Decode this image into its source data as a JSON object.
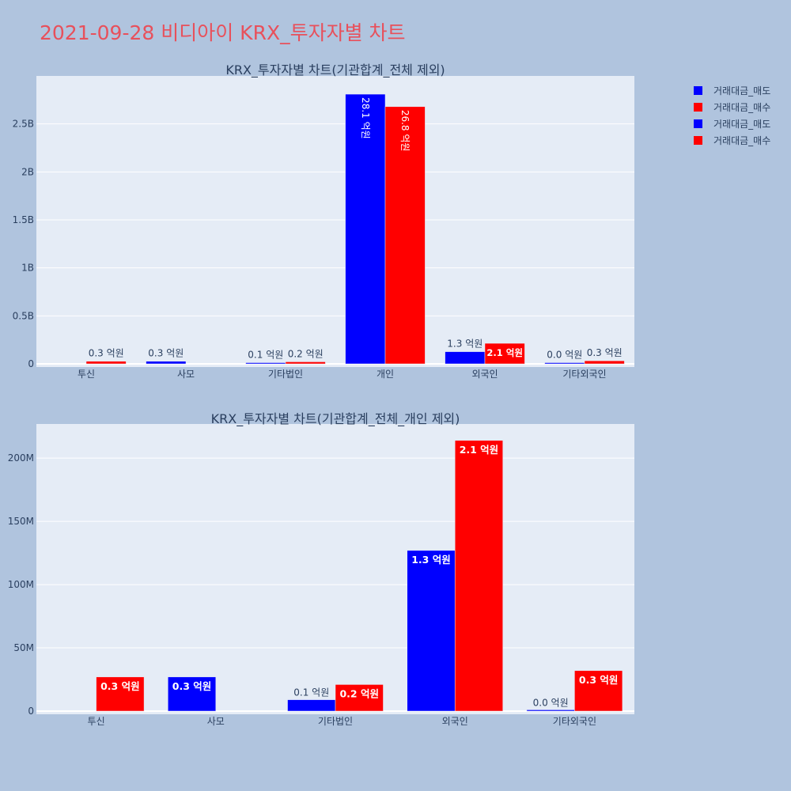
{
  "page": {
    "title": "2021-09-28 비디아이 KRX_투자자별 차트"
  },
  "colors": {
    "sell": "#0000ff",
    "buy": "#ff0000",
    "plot_bg": "#e5ecf6",
    "paper_bg": "#b0c4de",
    "text": "#2a3f5f",
    "title": "#e8505b"
  },
  "legend": {
    "placement": "top-right",
    "items": [
      {
        "label": "거래대금_매도",
        "color": "#0000ff"
      },
      {
        "label": "거래대금_매수",
        "color": "#ff0000"
      },
      {
        "label": "거래대금_매도",
        "color": "#0000ff"
      },
      {
        "label": "거래대금_매수",
        "color": "#ff0000"
      }
    ]
  },
  "chart_data": [
    {
      "type": "bar",
      "title": "KRX_투자자별 차트(기관합계_전체 제외)",
      "categories": [
        "투신",
        "사모",
        "기타법인",
        "개인",
        "외국인",
        "기타외국인"
      ],
      "ylim": [
        0,
        3000000000
      ],
      "yticks": [
        0,
        500000000,
        1000000000,
        1500000000,
        2000000000,
        2500000000
      ],
      "ytick_labels": [
        "0",
        "0.5B",
        "1B",
        "1.5B",
        "2B",
        "2.5B"
      ],
      "grid": true,
      "series": [
        {
          "name": "거래대금_매도",
          "color": "#0000ff",
          "values": [
            0,
            27000000,
            9000000,
            2810000000,
            127000000,
            1000000
          ],
          "labels": [
            "",
            "0.3 억원",
            "0.1 억원",
            "28.1 억원",
            "1.3 억원",
            "0.0 억원"
          ]
        },
        {
          "name": "거래대금_매수",
          "color": "#ff0000",
          "values": [
            27000000,
            0,
            21000000,
            2680000000,
            214000000,
            32000000
          ],
          "labels": [
            "0.3 억원",
            "",
            "0.2 억원",
            "26.8 억원",
            "2.1 억원",
            "0.3 억원"
          ]
        }
      ]
    },
    {
      "type": "bar",
      "title": "KRX_투자자별 차트(기관합계_전체_개인 제외)",
      "categories": [
        "투신",
        "사모",
        "기타법인",
        "외국인",
        "기타외국인"
      ],
      "ylim": [
        0,
        227000000
      ],
      "yticks": [
        0,
        50000000,
        100000000,
        150000000,
        200000000
      ],
      "ytick_labels": [
        "0",
        "50M",
        "100M",
        "150M",
        "200M"
      ],
      "grid": true,
      "series": [
        {
          "name": "거래대금_매도",
          "color": "#0000ff",
          "values": [
            0,
            27000000,
            9000000,
            127000000,
            1000000
          ],
          "labels": [
            "",
            "0.3 억원",
            "0.1 억원",
            "1.3 억원",
            "0.0 억원"
          ]
        },
        {
          "name": "거래대금_매수",
          "color": "#ff0000",
          "values": [
            27000000,
            0,
            21000000,
            214000000,
            32000000
          ],
          "labels": [
            "0.3 억원",
            "",
            "0.2 억원",
            "2.1 억원",
            "0.3 억원"
          ]
        }
      ]
    }
  ]
}
